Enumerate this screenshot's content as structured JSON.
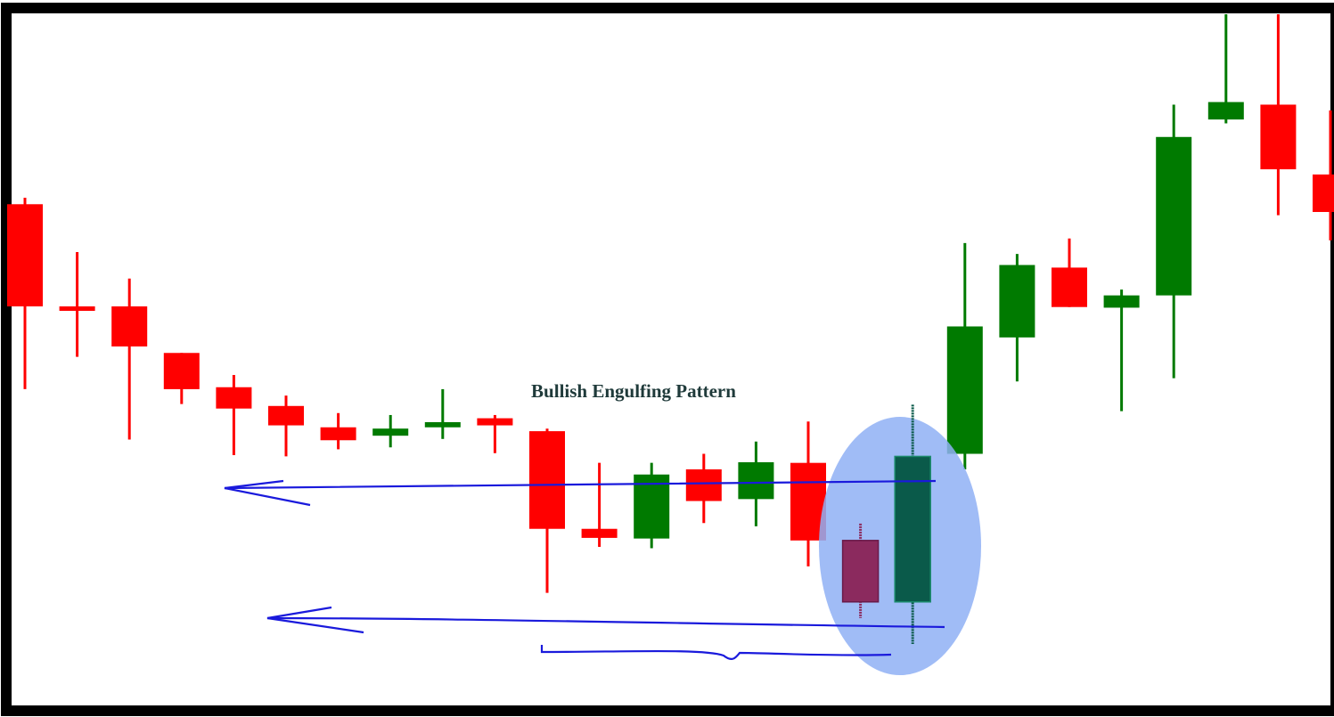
{
  "chart_data": {
    "type": "candlestick",
    "title": "",
    "annotation": "Bullish Engulfing Pattern",
    "colors": {
      "bullish": "#007a00",
      "bearish": "#ff0000",
      "pattern_bearish": "#8b2a5e",
      "pattern_bullish": "#0a5a4a",
      "highlight": "#8fb0f5",
      "support_lines": "#1a1adc",
      "frame": "#000000"
    },
    "y_range": [
      0,
      100
    ],
    "candles": [
      {
        "index": 1,
        "open": 72.0,
        "close": 56.2,
        "high": 73.0,
        "low": 43.4,
        "color": "bearish"
      },
      {
        "index": 2,
        "open": 56.2,
        "close": 55.9,
        "high": 64.6,
        "low": 48.4,
        "color": "bearish"
      },
      {
        "index": 3,
        "open": 56.2,
        "close": 50.0,
        "high": 60.5,
        "low": 35.6,
        "color": "bearish"
      },
      {
        "index": 4,
        "open": 49.0,
        "close": 43.4,
        "high": 49.0,
        "low": 41.1,
        "color": "bearish"
      },
      {
        "index": 5,
        "open": 43.7,
        "close": 40.4,
        "high": 45.6,
        "low": 33.2,
        "color": "bearish"
      },
      {
        "index": 6,
        "open": 40.8,
        "close": 37.8,
        "high": 42.4,
        "low": 33.0,
        "color": "bearish"
      },
      {
        "index": 7,
        "open": 37.5,
        "close": 35.5,
        "high": 39.7,
        "low": 34.1,
        "color": "bearish"
      },
      {
        "index": 8,
        "open": 36.2,
        "close": 37.3,
        "high": 39.4,
        "low": 34.4,
        "color": "bullish"
      },
      {
        "index": 9,
        "open": 37.5,
        "close": 38.3,
        "high": 43.4,
        "low": 35.7,
        "color": "bullish"
      },
      {
        "index": 10,
        "open": 38.9,
        "close": 37.8,
        "high": 39.4,
        "low": 33.5,
        "color": "bearish"
      },
      {
        "index": 11,
        "open": 36.9,
        "close": 21.8,
        "high": 37.3,
        "low": 11.9,
        "color": "bearish"
      },
      {
        "index": 12,
        "open": 21.8,
        "close": 20.4,
        "high": 32.0,
        "low": 19.0,
        "color": "bearish"
      },
      {
        "index": 13,
        "open": 20.3,
        "close": 30.2,
        "high": 32.0,
        "low": 18.8,
        "color": "bullish"
      },
      {
        "index": 14,
        "open": 31.0,
        "close": 26.1,
        "high": 33.4,
        "low": 22.7,
        "color": "bearish"
      },
      {
        "index": 15,
        "open": 26.4,
        "close": 32.1,
        "high": 35.3,
        "low": 22.2,
        "color": "bullish"
      },
      {
        "index": 16,
        "open": 32.0,
        "close": 20.0,
        "high": 38.4,
        "low": 16.0,
        "color": "bearish"
      },
      {
        "index": 17,
        "open": 20.0,
        "close": 10.5,
        "high": 22.6,
        "low": 8.0,
        "color": "pattern_bearish"
      },
      {
        "index": 18,
        "open": 10.5,
        "close": 33.0,
        "high": 41.0,
        "low": 4.0,
        "color": "pattern_bullish"
      },
      {
        "index": 19,
        "open": 33.4,
        "close": 53.1,
        "high": 66.0,
        "low": 31.0,
        "color": "bullish"
      },
      {
        "index": 20,
        "open": 51.4,
        "close": 62.6,
        "high": 64.3,
        "low": 44.6,
        "color": "bullish"
      },
      {
        "index": 21,
        "open": 62.2,
        "close": 56.1,
        "high": 66.7,
        "low": 56.1,
        "color": "bearish"
      },
      {
        "index": 22,
        "open": 56.0,
        "close": 57.9,
        "high": 58.8,
        "low": 40.0,
        "color": "bullish"
      },
      {
        "index": 23,
        "open": 57.9,
        "close": 82.4,
        "high": 87.4,
        "low": 45.1,
        "color": "bullish"
      },
      {
        "index": 24,
        "open": 85.1,
        "close": 87.8,
        "high": 102.0,
        "low": 84.5,
        "color": "bullish"
      },
      {
        "index": 25,
        "open": 87.4,
        "close": 77.4,
        "high": 104.0,
        "low": 70.3,
        "color": "bearish"
      },
      {
        "index": 26,
        "open": 76.6,
        "close": 70.8,
        "high": 86.5,
        "low": 66.4,
        "color": "bearish"
      }
    ]
  }
}
